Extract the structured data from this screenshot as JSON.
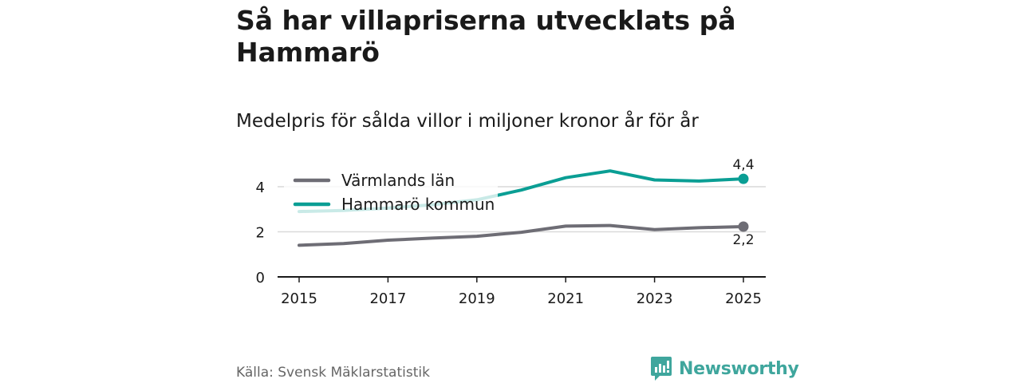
{
  "header": {
    "title": "Så har villapriserna utvecklats på Hammarö",
    "subtitle": "Medelpris för sålda villor i miljoner kronor år för år"
  },
  "footer": {
    "source": "Källa: Svensk Mäklarstatistik",
    "brand": "Newsworthy",
    "brand_icon": "newsworthy-logo-icon"
  },
  "colors": {
    "varmland": "#6e6d75",
    "hammaro": "#0a9e94",
    "hammaro_faded": "#c9ece8",
    "grid": "#d9d9d9",
    "axis": "#1a1a1a"
  },
  "chart_data": {
    "type": "line",
    "title": "Så har villapriserna utvecklats på Hammarö",
    "subtitle": "Medelpris för sålda villor i miljoner kronor år för år",
    "xlabel": "",
    "ylabel": "",
    "x": [
      2015,
      2016,
      2017,
      2018,
      2019,
      2020,
      2021,
      2022,
      2023,
      2024,
      2025
    ],
    "x_ticks": [
      "2015",
      "2017",
      "2019",
      "2021",
      "2023",
      "2025"
    ],
    "y_ticks": [
      "0",
      "2",
      "4"
    ],
    "ylim": [
      0,
      4.8
    ],
    "grid": true,
    "legend_position": "top-left",
    "series": [
      {
        "name": "Värmlands län",
        "values": [
          1.4,
          1.48,
          1.63,
          1.72,
          1.8,
          1.98,
          2.25,
          2.28,
          2.1,
          2.18,
          2.23
        ],
        "end_label": "2,2"
      },
      {
        "name": "Hammarö kommun",
        "values": [
          2.9,
          2.95,
          3.05,
          3.2,
          3.42,
          3.85,
          4.4,
          4.7,
          4.3,
          4.25,
          4.35
        ],
        "end_label": "4,4"
      }
    ]
  }
}
